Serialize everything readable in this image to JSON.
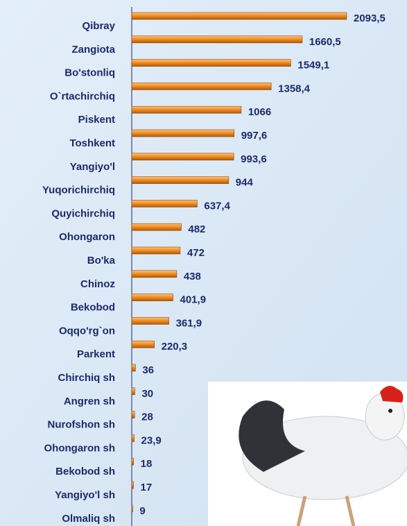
{
  "chart_data": {
    "type": "bar",
    "orientation": "horizontal",
    "categories": [
      "Qibray",
      "Zangiota",
      "Bo'stonliq",
      "O`rtachirchiq",
      "Piskent",
      "Toshkent",
      "Yangiyo'l",
      "Yuqorichirchiq",
      "Quyichirchiq",
      "Ohongaron",
      "Bo'ka",
      "Chinoz",
      "Bekobod",
      "Oqqo'rg`on",
      "Parkent",
      "Chirchiq sh",
      "Angren sh",
      "Nurofshon sh",
      "Ohongaron sh",
      "Bekobod sh",
      "Yangiyo'l sh",
      "Olmaliq sh"
    ],
    "values": [
      2093.5,
      1660.5,
      1549.1,
      1358.4,
      1066,
      997.6,
      993.6,
      944,
      637.4,
      482,
      472,
      438,
      401.9,
      361.9,
      220.3,
      36,
      30,
      28,
      23.9,
      18,
      17,
      9
    ],
    "value_labels": [
      "2093,5",
      "1660,5",
      "1549,1",
      "1358,4",
      "1066",
      "997,6",
      "993,6",
      "944",
      "637,4",
      "482",
      "472",
      "438",
      "401,9",
      "361,9",
      "220,3",
      "36",
      "30",
      "28",
      "23,9",
      "18",
      "17",
      "9"
    ],
    "color": "#f08a1e"
  }
}
